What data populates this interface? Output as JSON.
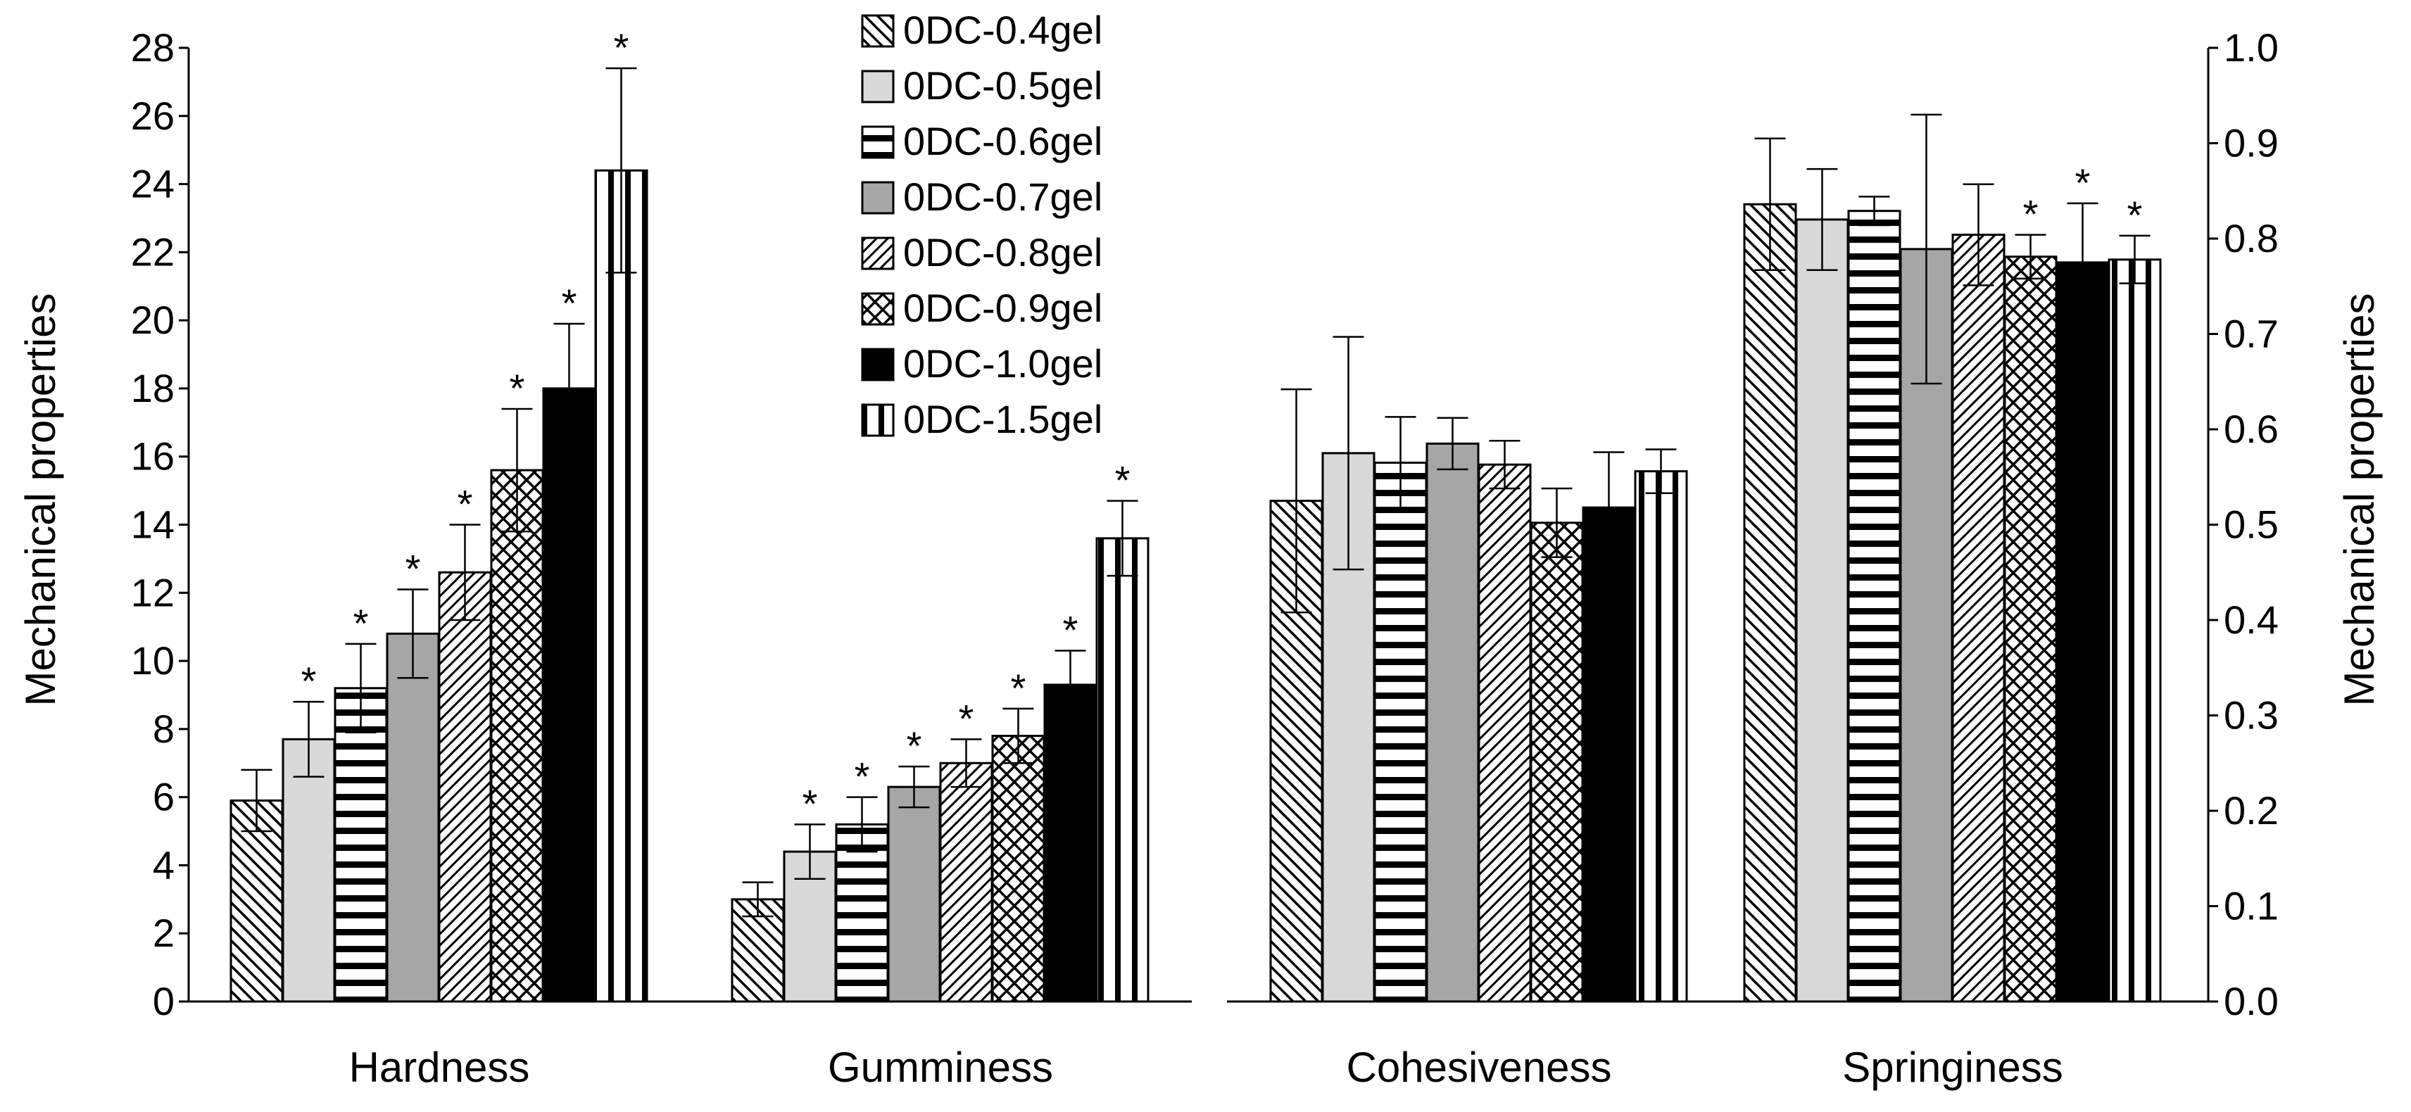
{
  "chart_data": {
    "type": "bar",
    "series": [
      {
        "name": "0DC-0.4gel",
        "pattern": "diag-dense-back"
      },
      {
        "name": "0DC-0.5gel",
        "pattern": "solid-light-gray"
      },
      {
        "name": "0DC-0.6gel",
        "pattern": "horizontal-stripes"
      },
      {
        "name": "0DC-0.7gel",
        "pattern": "solid-gray"
      },
      {
        "name": "0DC-0.8gel",
        "pattern": "diag-forward"
      },
      {
        "name": "0DC-0.9gel",
        "pattern": "crosshatch"
      },
      {
        "name": "0DC-1.0gel",
        "pattern": "solid-black"
      },
      {
        "name": "0DC-1.5gel",
        "pattern": "vertical-stripes"
      }
    ],
    "left_panel": {
      "axis": "left",
      "ylabel": "Mechanical properties",
      "ylim": [
        0,
        28
      ],
      "yticks": [
        "0",
        "2",
        "4",
        "6",
        "8",
        "10",
        "12",
        "14",
        "16",
        "18",
        "20",
        "22",
        "24",
        "26",
        "28"
      ],
      "groups": [
        {
          "category": "Hardness",
          "values": [
            5.9,
            7.7,
            9.2,
            10.8,
            12.6,
            15.6,
            18.0,
            24.4
          ],
          "errors": [
            0.9,
            1.1,
            1.3,
            1.3,
            1.4,
            1.8,
            1.9,
            3.0
          ],
          "significant": [
            false,
            true,
            true,
            true,
            true,
            true,
            true,
            true
          ]
        },
        {
          "category": "Gumminess",
          "values": [
            3.0,
            4.4,
            5.2,
            6.3,
            7.0,
            7.8,
            9.3,
            13.6
          ],
          "errors": [
            0.5,
            0.8,
            0.8,
            0.6,
            0.7,
            0.8,
            1.0,
            1.1
          ],
          "significant": [
            false,
            true,
            true,
            true,
            true,
            true,
            true,
            true
          ]
        }
      ]
    },
    "right_panel": {
      "axis": "right",
      "ylabel": "Mechanical properties",
      "ylim": [
        0,
        1.0
      ],
      "yticks": [
        "0.0",
        "0.1",
        "0.2",
        "0.3",
        "0.4",
        "0.5",
        "0.6",
        "0.7",
        "0.8",
        "0.9",
        "1.0"
      ],
      "groups": [
        {
          "category": "Cohesiveness",
          "values": [
            0.525,
            0.575,
            0.565,
            0.585,
            0.563,
            0.502,
            0.518,
            0.556
          ],
          "errors": [
            0.117,
            0.122,
            0.048,
            0.027,
            0.025,
            0.036,
            0.058,
            0.023
          ],
          "significant": [
            false,
            false,
            false,
            false,
            false,
            false,
            false,
            false
          ]
        },
        {
          "category": "Springiness",
          "values": [
            0.836,
            0.82,
            0.829,
            0.789,
            0.804,
            0.781,
            0.775,
            0.778
          ],
          "errors": [
            0.069,
            0.053,
            0.015,
            0.141,
            0.053,
            0.023,
            0.062,
            0.025
          ],
          "significant": [
            false,
            false,
            false,
            false,
            false,
            true,
            true,
            true
          ]
        }
      ]
    },
    "significance_marker": "*",
    "legend_position": "top-center"
  }
}
